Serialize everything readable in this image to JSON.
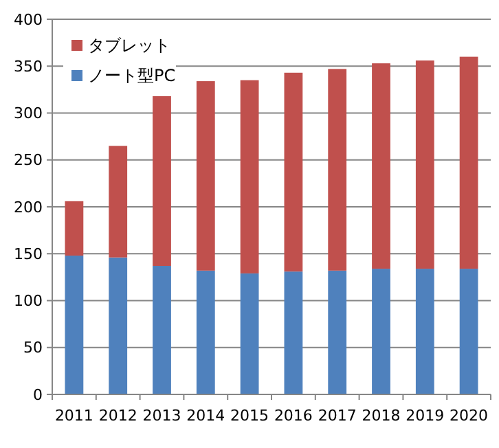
{
  "chart_data": {
    "type": "bar",
    "stacked": true,
    "categories": [
      "2011",
      "2012",
      "2013",
      "2014",
      "2015",
      "2016",
      "2017",
      "2018",
      "2019",
      "2020"
    ],
    "series": [
      {
        "name": "ノート型PC",
        "color": "#4f81bd",
        "values": [
          148,
          146,
          137,
          132,
          129,
          131,
          132,
          134,
          134,
          134
        ]
      },
      {
        "name": "タブレット",
        "color": "#c0504d",
        "values": [
          58,
          119,
          181,
          202,
          206,
          212,
          215,
          219,
          222,
          226
        ]
      }
    ],
    "ylim": [
      0,
      400
    ],
    "yticks": [
      0,
      50,
      100,
      150,
      200,
      250,
      300,
      350,
      400
    ],
    "grid": "y",
    "legend": "top left"
  }
}
